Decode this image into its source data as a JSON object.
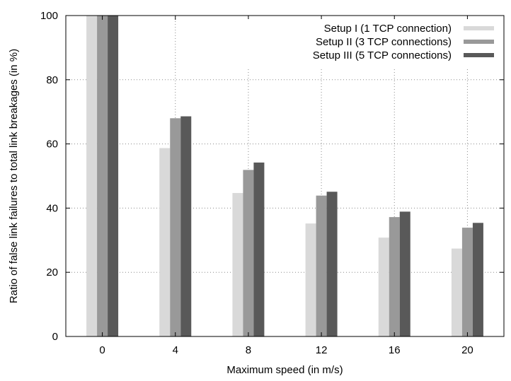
{
  "chart_data": {
    "type": "bar",
    "title": "",
    "xlabel": "Maximum speed (in m/s)",
    "ylabel": "Ratio of false link failures to total link breakages (in %)",
    "categories": [
      "0",
      "4",
      "8",
      "12",
      "16",
      "20"
    ],
    "ylim": [
      0,
      100
    ],
    "yticks": [
      "0",
      "20",
      "40",
      "60",
      "80",
      "100"
    ],
    "grid": true,
    "legend_position": "top-right",
    "series": [
      {
        "name": "Setup I (1 TCP connection)",
        "color": "#d9d9d9",
        "values": [
          100,
          58.7,
          44.7,
          35.2,
          30.8,
          27.4
        ]
      },
      {
        "name": "Setup II (3 TCP connections)",
        "color": "#999999",
        "values": [
          100,
          68.0,
          51.9,
          43.9,
          37.2,
          33.9
        ]
      },
      {
        "name": "Setup III (5 TCP connections)",
        "color": "#595959",
        "values": [
          100,
          68.6,
          54.2,
          45.1,
          38.9,
          35.4
        ]
      }
    ]
  }
}
